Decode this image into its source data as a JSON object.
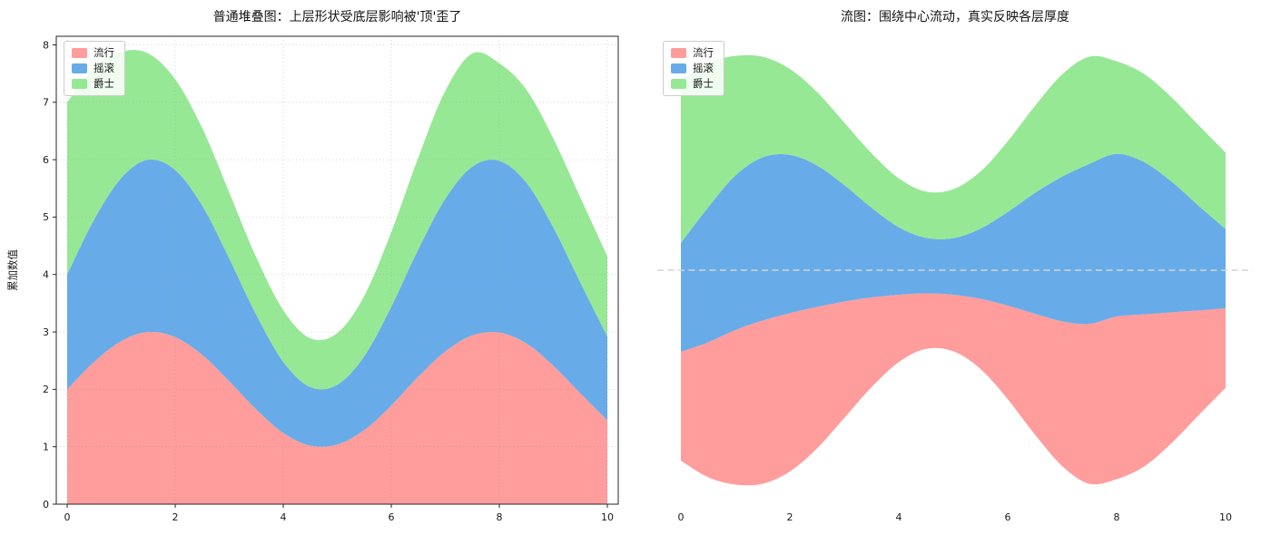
{
  "figure": {
    "background": "#ffffff"
  },
  "chart_data": [
    {
      "type": "area",
      "variant": "stacked",
      "title": "普通堆叠图：上层形状受底层影响被'顶'歪了",
      "xlabel": "",
      "ylabel": "累加数值",
      "legend": {
        "position": "upper left",
        "labels": [
          "流行",
          "摇滚",
          "爵士"
        ]
      },
      "grid": true,
      "grid_style": "dotted",
      "xlim": [
        -0.5,
        10.5
      ],
      "ylim": [
        0,
        8.15
      ],
      "xticks": [
        0,
        2,
        4,
        6,
        8,
        10
      ],
      "yticks": [
        0,
        1,
        2,
        3,
        4,
        5,
        6,
        7,
        8
      ],
      "x": [
        0,
        0.5,
        1,
        1.5,
        2,
        2.5,
        3,
        3.5,
        4,
        4.5,
        5,
        5.5,
        6,
        6.5,
        7,
        7.5,
        8,
        8.5,
        9,
        9.5,
        10
      ],
      "series": [
        {
          "name": "流行",
          "color": "#FF9C9C",
          "values": [
            2.0,
            2.48,
            2.84,
            3.0,
            2.91,
            2.6,
            2.14,
            1.65,
            1.24,
            1.02,
            1.04,
            1.29,
            1.72,
            2.22,
            2.66,
            2.94,
            2.99,
            2.8,
            2.41,
            1.93,
            1.46
          ]
        },
        {
          "name": "摇滚",
          "color": "#67ACE8",
          "values": [
            2.0,
            2.48,
            2.84,
            3.0,
            2.91,
            2.6,
            2.14,
            1.65,
            1.24,
            1.02,
            1.04,
            1.29,
            1.72,
            2.22,
            2.66,
            2.94,
            2.99,
            2.8,
            2.41,
            1.93,
            1.46
          ]
        },
        {
          "name": "爵士",
          "color": "#97E895",
          "values": [
            3.0,
            2.65,
            2.2,
            1.85,
            1.58,
            1.35,
            1.15,
            1.0,
            0.9,
            0.85,
            0.9,
            1.05,
            1.3,
            1.6,
            1.88,
            1.97,
            1.7,
            1.62,
            1.55,
            1.48,
            1.4
          ]
        }
      ]
    },
    {
      "type": "area",
      "variant": "streamgraph",
      "baseline": "symmetric",
      "title": "流图：围绕中心流动，真实反映各层厚度",
      "xlabel": "",
      "ylabel": "",
      "legend": {
        "position": "upper left",
        "labels": [
          "流行",
          "摇滚",
          "爵士"
        ]
      },
      "grid": false,
      "centerline": {
        "y": 0,
        "style": "dashed",
        "color": "#d3d3d3"
      },
      "xlim": [
        -0.45,
        10.5
      ],
      "xticks": [
        0,
        2,
        4,
        6,
        8,
        10
      ],
      "yticks": [],
      "x": [
        0,
        0.5,
        1,
        1.5,
        2,
        2.5,
        3,
        3.5,
        4,
        4.5,
        5,
        5.5,
        6,
        6.5,
        7,
        7.5,
        8,
        8.5,
        9,
        9.5,
        10
      ],
      "series": [
        {
          "name": "流行",
          "color": "#FF9C9C",
          "values": [
            2.0,
            2.48,
            2.84,
            3.0,
            2.91,
            2.6,
            2.14,
            1.65,
            1.24,
            1.02,
            1.04,
            1.29,
            1.72,
            2.22,
            2.66,
            2.94,
            2.99,
            2.8,
            2.41,
            1.93,
            1.46
          ]
        },
        {
          "name": "摇滚",
          "color": "#67ACE8",
          "values": [
            2.0,
            2.48,
            2.84,
            3.0,
            2.91,
            2.6,
            2.14,
            1.65,
            1.24,
            1.02,
            1.04,
            1.29,
            1.72,
            2.22,
            2.66,
            2.94,
            2.99,
            2.8,
            2.41,
            1.93,
            1.46
          ]
        },
        {
          "name": "爵士",
          "color": "#97E895",
          "values": [
            3.0,
            2.65,
            2.2,
            1.85,
            1.58,
            1.35,
            1.15,
            1.0,
            0.9,
            0.85,
            0.9,
            1.05,
            1.3,
            1.6,
            1.88,
            1.97,
            1.7,
            1.62,
            1.55,
            1.48,
            1.4
          ]
        }
      ]
    }
  ]
}
